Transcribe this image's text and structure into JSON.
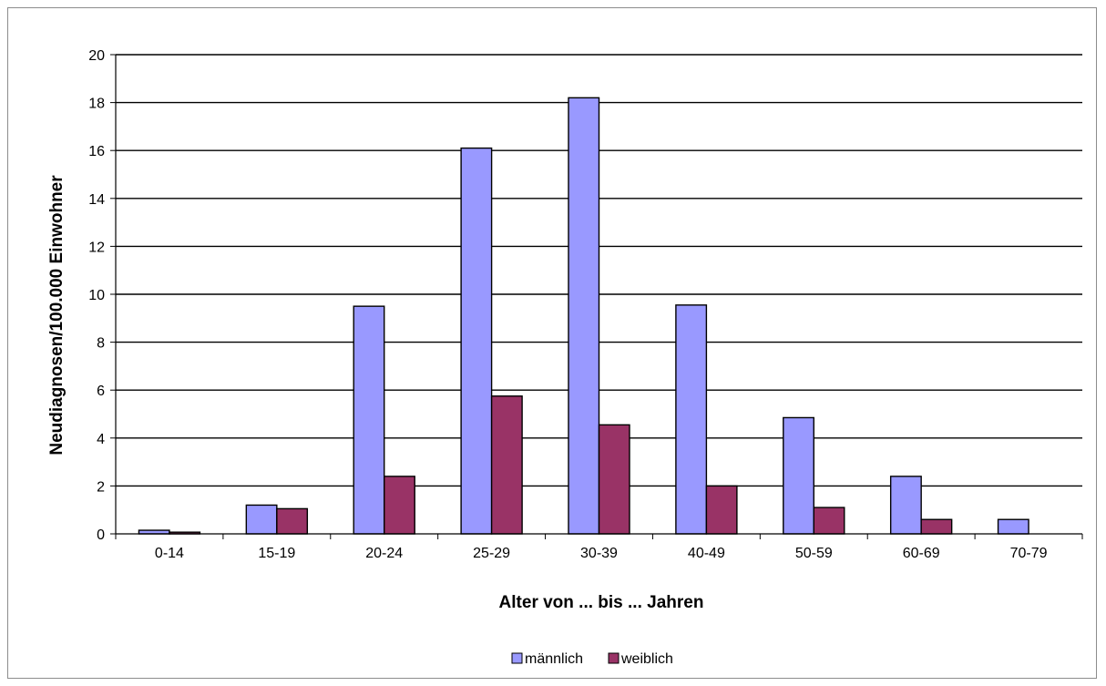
{
  "chart_data": {
    "type": "bar",
    "title": "",
    "xlabel": "Alter von ... bis ... Jahren",
    "ylabel": "Neudiagnosen/100.000 Einwohner",
    "ylim": [
      0,
      20
    ],
    "yticks": [
      0,
      2,
      4,
      6,
      8,
      10,
      12,
      14,
      16,
      18,
      20
    ],
    "categories": [
      "0-14",
      "15-19",
      "20-24",
      "25-29",
      "30-39",
      "40-49",
      "50-59",
      "60-69",
      "70-79"
    ],
    "series": [
      {
        "name": "männlich",
        "color": "#9999ff",
        "values": [
          0.15,
          1.2,
          9.5,
          16.1,
          18.2,
          9.55,
          4.85,
          2.4,
          0.6
        ]
      },
      {
        "name": "weiblich",
        "color": "#993366",
        "values": [
          0.07,
          1.05,
          2.4,
          5.75,
          4.55,
          2.0,
          1.1,
          0.6,
          0
        ]
      }
    ],
    "grid": true,
    "legend_position": "bottom"
  }
}
